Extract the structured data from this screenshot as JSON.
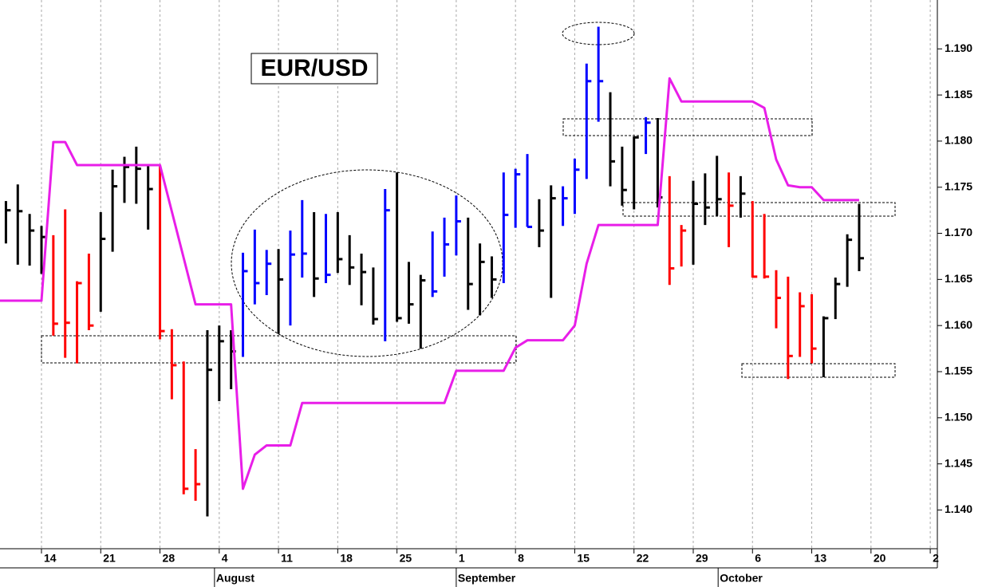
{
  "chart_data": {
    "type": "ohlc",
    "title": "EUR/USD",
    "x": [
      -3,
      -2,
      -1,
      0,
      1,
      2,
      3,
      4,
      5,
      6,
      7,
      8,
      9,
      10,
      11,
      12,
      13,
      14,
      15,
      16,
      17,
      18,
      19,
      20,
      21,
      22,
      23,
      24,
      25,
      26,
      27,
      28,
      29,
      30,
      31,
      32,
      33,
      34,
      35,
      36,
      37,
      38,
      39,
      40,
      41,
      42,
      43,
      44,
      45,
      46,
      47,
      48,
      49,
      50,
      51,
      52,
      53,
      54,
      55,
      56,
      57,
      58,
      59,
      60,
      61,
      62,
      63,
      64,
      65,
      66,
      67,
      68,
      69
    ],
    "high": [
      1.1735,
      1.1753,
      1.1721,
      1.1708,
      1.1698,
      1.1726,
      1.1648,
      1.1678,
      1.1723,
      1.1769,
      1.1783,
      1.1794,
      1.1775,
      1.1773,
      1.1596,
      1.1561,
      1.1466,
      1.1595,
      1.16,
      1.1595,
      1.1679,
      1.1704,
      1.1682,
      1.1683,
      1.1703,
      1.1736,
      1.1723,
      1.1721,
      1.1723,
      1.1698,
      1.1678,
      1.1663,
      1.1748,
      1.1766,
      1.1669,
      1.1655,
      1.1702,
      1.1717,
      1.1741,
      1.1717,
      1.1689,
      1.1675,
      1.1766,
      1.177,
      1.1786,
      1.1737,
      1.1752,
      1.1751,
      1.1781,
      1.1884,
      1.1924,
      1.1853,
      1.1794,
      1.1805,
      1.1826,
      1.1825,
      1.1762,
      1.1709,
      1.1757,
      1.1765,
      1.1784,
      1.1766,
      1.1762,
      1.1735,
      1.1721,
      1.166,
      1.1653,
      1.1636,
      1.1634,
      1.161,
      1.1652,
      1.1699,
      1.1732
    ],
    "low": [
      1.1689,
      1.1666,
      1.1665,
      1.1656,
      1.1589,
      1.1565,
      1.1559,
      1.1595,
      1.1615,
      1.168,
      1.1733,
      1.1732,
      1.1704,
      1.1585,
      1.152,
      1.1417,
      1.141,
      1.1393,
      1.1518,
      1.1531,
      1.1566,
      1.1623,
      1.1633,
      1.1591,
      1.16,
      1.1652,
      1.1631,
      1.1646,
      1.1657,
      1.1644,
      1.1622,
      1.1601,
      1.1583,
      1.1604,
      1.1602,
      1.1575,
      1.1631,
      1.1653,
      1.1676,
      1.1617,
      1.1611,
      1.163,
      1.1646,
      1.1706,
      1.1707,
      1.1685,
      1.163,
      1.1708,
      1.1721,
      1.1759,
      1.1821,
      1.1751,
      1.173,
      1.1726,
      1.1786,
      1.1728,
      1.1644,
      1.1664,
      1.1666,
      1.1709,
      1.1719,
      1.1685,
      1.1717,
      1.1652,
      1.1651,
      1.1597,
      1.1542,
      1.1566,
      1.1559,
      1.1544,
      1.1607,
      1.1642,
      1.1659
    ],
    "close": [
      1.1725,
      1.1724,
      1.1703,
      1.1696,
      1.1602,
      1.1603,
      1.1646,
      1.16,
      1.1694,
      1.1751,
      1.1772,
      1.177,
      1.1748,
      1.1594,
      1.1557,
      1.1423,
      1.1428,
      1.1552,
      1.1583,
      1.1572,
      1.1659,
      1.1646,
      1.1667,
      1.165,
      1.1677,
      1.1678,
      1.1651,
      1.1655,
      1.1672,
      1.1663,
      1.1658,
      1.1607,
      1.1725,
      1.1608,
      1.1623,
      1.1649,
      1.1637,
      1.1688,
      1.1713,
      1.1645,
      1.1669,
      1.165,
      1.172,
      1.1764,
      1.1707,
      1.1703,
      1.1738,
      1.1738,
      1.1769,
      1.1865,
      1.1865,
      1.1778,
      1.1747,
      1.1804,
      1.182,
      1.1739,
      1.1662,
      1.1703,
      1.1732,
      1.1728,
      1.1737,
      1.173,
      1.1743,
      1.1653,
      1.1653,
      1.163,
      1.1567,
      1.1621,
      1.1575,
      1.1608,
      1.1645,
      1.1693,
      1.1673
    ],
    "colors": [
      "black",
      "black",
      "black",
      "black",
      "red",
      "red",
      "red",
      "red",
      "black",
      "black",
      "black",
      "black",
      "black",
      "red",
      "red",
      "red",
      "red",
      "black",
      "black",
      "black",
      "blue",
      "blue",
      "blue",
      "black",
      "blue",
      "blue",
      "black",
      "blue",
      "black",
      "black",
      "black",
      "black",
      "blue",
      "black",
      "black",
      "black",
      "blue",
      "blue",
      "blue",
      "black",
      "black",
      "black",
      "blue",
      "blue",
      "blue",
      "black",
      "black",
      "blue",
      "blue",
      "blue",
      "blue",
      "black",
      "black",
      "black",
      "blue",
      "black",
      "red",
      "red",
      "black",
      "black",
      "black",
      "red",
      "black",
      "red",
      "red",
      "red",
      "red",
      "red",
      "red",
      "black",
      "black",
      "black",
      "black"
    ],
    "stop_line": {
      "color": "#e81ee8",
      "x": [
        -3.5,
        0,
        1,
        2,
        3,
        10,
        13,
        16,
        17,
        18,
        19,
        21,
        22,
        34,
        35,
        39,
        40,
        41,
        44,
        45,
        46,
        47,
        52,
        53,
        54,
        60,
        61,
        62,
        63,
        64,
        65,
        66,
        69
      ],
      "values": [
        1.1627,
        1.1627,
        1.1799,
        1.1799,
        1.1774,
        1.1774,
        1.1623,
        1.1623,
        1.1423,
        1.146,
        1.147,
        1.147,
        1.1516,
        1.1516,
        1.1551,
        1.1551,
        1.1576,
        1.1584,
        1.1584,
        1.16,
        1.1667,
        1.1709,
        1.1709,
        1.1868,
        1.1843,
        1.1843,
        1.1836,
        1.178,
        1.1752,
        1.175,
        1.175,
        1.1736,
        1.1736
      ]
    },
    "xlim": [
      -3.5,
      75.6
    ],
    "xticks": [
      {
        "value": 0,
        "label": "14"
      },
      {
        "value": 5,
        "label": "21"
      },
      {
        "value": 10,
        "label": "28"
      },
      {
        "value": 15,
        "label": "4"
      },
      {
        "value": 20,
        "label": "11"
      },
      {
        "value": 25,
        "label": "18"
      },
      {
        "value": 30,
        "label": "25"
      },
      {
        "value": 35,
        "label": "1"
      },
      {
        "value": 40,
        "label": "8"
      },
      {
        "value": 45,
        "label": "15"
      },
      {
        "value": 50,
        "label": "22"
      },
      {
        "value": 55,
        "label": "29"
      },
      {
        "value": 60,
        "label": "6"
      },
      {
        "value": 65,
        "label": "13"
      },
      {
        "value": 70,
        "label": "20"
      },
      {
        "value": 75,
        "label": "2"
      }
    ],
    "month_ticks": [
      {
        "value": 14.6,
        "label": "August"
      },
      {
        "value": 35,
        "label": "September"
      },
      {
        "value": 57.1,
        "label": "October"
      }
    ],
    "ylim": [
      1.1358,
      1.1953
    ],
    "yticks": [
      {
        "value": 1.14,
        "label": "1.140"
      },
      {
        "value": 1.145,
        "label": "1.145"
      },
      {
        "value": 1.15,
        "label": "1.150"
      },
      {
        "value": 1.155,
        "label": "1.155"
      },
      {
        "value": 1.16,
        "label": "1.160"
      },
      {
        "value": 1.165,
        "label": "1.165"
      },
      {
        "value": 1.17,
        "label": "1.170"
      },
      {
        "value": 1.175,
        "label": "1.175"
      },
      {
        "value": 1.18,
        "label": "1.180"
      },
      {
        "value": 1.185,
        "label": "1.185"
      },
      {
        "value": 1.19,
        "label": "1.190"
      }
    ],
    "grid": true
  }
}
